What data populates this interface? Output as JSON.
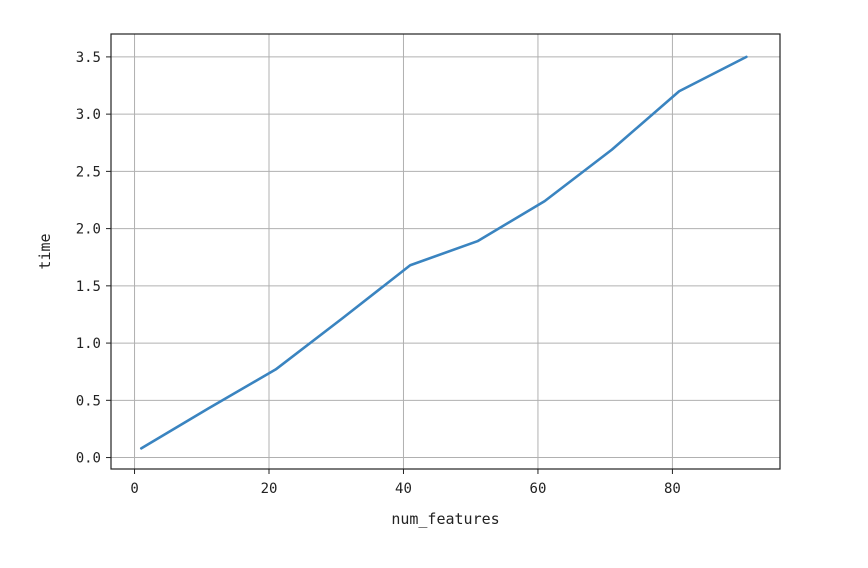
{
  "chart_data": {
    "type": "line",
    "title": "",
    "xlabel": "num_features",
    "ylabel": "time",
    "xlim": [
      -3.5,
      96
    ],
    "ylim": [
      -0.1,
      3.7
    ],
    "grid": true,
    "xticks": [
      0,
      20,
      40,
      60,
      80
    ],
    "yticks": [
      0.0,
      0.5,
      1.0,
      1.5,
      2.0,
      2.5,
      3.0,
      3.5
    ],
    "xtick_labels": [
      "0",
      "20",
      "40",
      "60",
      "80"
    ],
    "ytick_labels": [
      "0.0",
      "0.5",
      "1.0",
      "1.5",
      "2.0",
      "2.5",
      "3.0",
      "3.5"
    ],
    "series": [
      {
        "color": "#3a84c0",
        "x": [
          1,
          11,
          21,
          31,
          41,
          51,
          61,
          71,
          81,
          91
        ],
        "y": [
          0.08,
          0.43,
          0.77,
          1.22,
          1.68,
          1.89,
          2.24,
          2.69,
          3.2,
          3.5
        ]
      }
    ]
  }
}
